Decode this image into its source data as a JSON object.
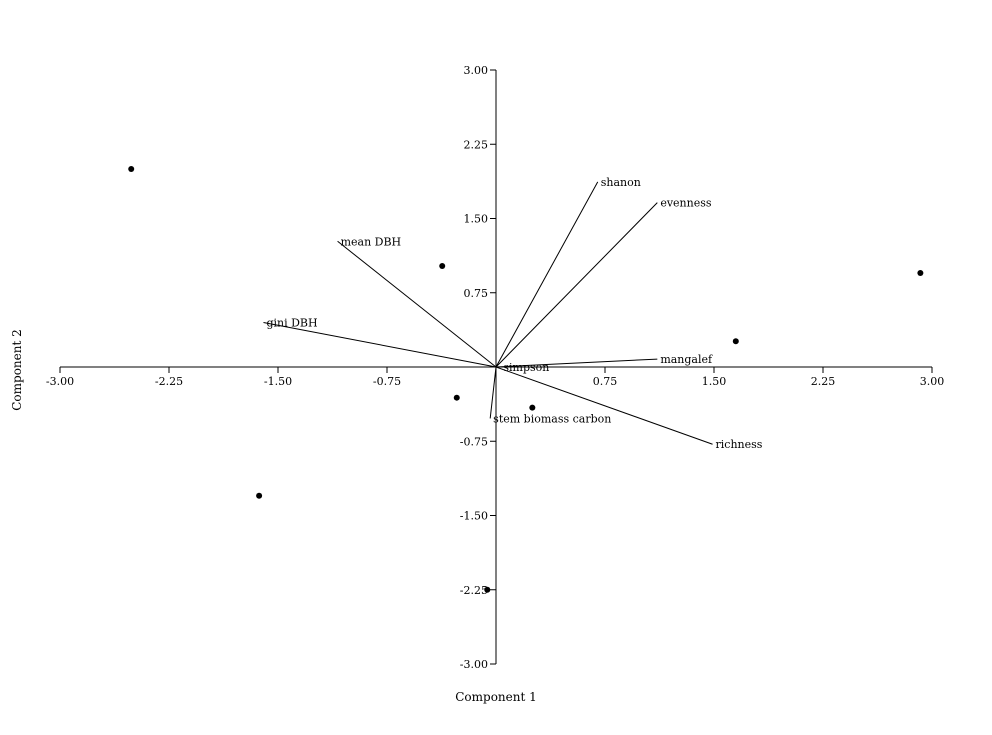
{
  "chart_data": {
    "type": "scatter",
    "xlabel": "Component 1",
    "ylabel": "Component 2",
    "xlim": [
      -3.0,
      3.0
    ],
    "ylim": [
      -3.0,
      3.0
    ],
    "xticks": [
      -3.0,
      -2.25,
      -1.5,
      -0.75,
      0.75,
      1.5,
      2.25,
      3.0
    ],
    "yticks": [
      3.0,
      2.25,
      1.5,
      0.75,
      -0.75,
      -1.5,
      -2.25,
      -3.0
    ],
    "xtick_labels": [
      "-3.00",
      "-2.25",
      "-1.50",
      "-0.75",
      "0.75",
      "1.50",
      "2.25",
      "3.00"
    ],
    "ytick_labels": [
      "3.00",
      "2.25",
      "1.50",
      "0.75",
      "-0.75",
      "-1.50",
      "-2.25",
      "-3.00"
    ],
    "grid": false,
    "points": [
      {
        "x": -2.51,
        "y": 2.0
      },
      {
        "x": -0.37,
        "y": 1.02
      },
      {
        "x": 2.92,
        "y": 0.95
      },
      {
        "x": 1.65,
        "y": 0.26
      },
      {
        "x": -0.27,
        "y": -0.31
      },
      {
        "x": 0.25,
        "y": -0.41
      },
      {
        "x": -1.63,
        "y": -1.3
      },
      {
        "x": -0.06,
        "y": -2.25
      }
    ],
    "loadings": [
      {
        "name": "shanon",
        "x": 0.7,
        "y": 1.87
      },
      {
        "name": "evenness",
        "x": 1.11,
        "y": 1.66
      },
      {
        "name": "mean DBH",
        "x": -1.09,
        "y": 1.27
      },
      {
        "name": "gini DBH",
        "x": -1.6,
        "y": 0.45
      },
      {
        "name": "mangalef",
        "x": 1.11,
        "y": 0.08
      },
      {
        "name": "simpson",
        "x": 0.03,
        "y": 0.0
      },
      {
        "name": "stem biomass carbon",
        "x": -0.04,
        "y": -0.52
      },
      {
        "name": "richness",
        "x": 1.49,
        "y": -0.78
      }
    ]
  }
}
